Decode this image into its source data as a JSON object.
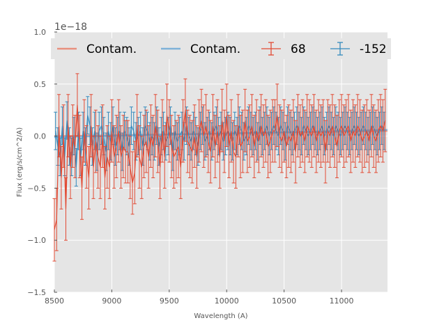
{
  "chart_data": {
    "type": "line",
    "xlabel": "Wavelength (A)",
    "ylabel": "Flux (erg/s/cm^2/A)",
    "y_offset_label": "1e−18",
    "xlim": [
      8500,
      11400
    ],
    "ylim": [
      -1.5,
      1.0
    ],
    "x_ticks": [
      8500,
      9000,
      9500,
      10000,
      10500,
      11000
    ],
    "x_tick_labels": [
      "8500",
      "9000",
      "9500",
      "10000",
      "10500",
      "11000"
    ],
    "y_ticks": [
      -1.5,
      -1.0,
      -0.5,
      0.0,
      0.5,
      1.0
    ],
    "y_tick_labels": [
      "−1.5",
      "−1.0",
      "−0.5",
      "0.0",
      "0.5",
      "1.0"
    ],
    "grid": true,
    "legend_position": "top",
    "colors": {
      "series_68": "#E24A33",
      "series_152": "#348ABD",
      "contam_68": "#E8907E",
      "contam_152": "#7EB1D8",
      "background": "#E5E5E5",
      "grid": "#FFFFFF"
    },
    "legend": [
      {
        "label": "Contam.",
        "kind": "line",
        "color": "#E8907E"
      },
      {
        "label": "Contam.",
        "kind": "line",
        "color": "#7EB1D8"
      },
      {
        "label": "68",
        "kind": "errorbar",
        "color": "#E24A33"
      },
      {
        "label": "-152",
        "kind": "errorbar",
        "color": "#348ABD"
      }
    ],
    "series": [
      {
        "name": "68",
        "kind": "errorbar",
        "color": "#E24A33",
        "x_start": 8500,
        "x_step": 20,
        "y": [
          -0.9,
          -0.8,
          0.1,
          -0.4,
          0.0,
          -0.7,
          0.1,
          -0.3,
          0.0,
          -0.1,
          0.3,
          -0.1,
          -0.5,
          0.05,
          -0.2,
          -0.4,
          0.1,
          -0.3,
          -0.05,
          -0.2,
          -0.3,
          0.0,
          -0.4,
          -0.2,
          -0.3,
          0.05,
          -0.2,
          -0.1,
          0.05,
          -0.2,
          -0.1,
          -0.15,
          -0.15,
          -0.3,
          -0.45,
          -0.35,
          0.1,
          -0.2,
          -0.3,
          -0.1,
          -0.05,
          -0.2,
          0.0,
          -0.1,
          0.1,
          -0.05,
          -0.3,
          0.05,
          -0.2,
          0.2,
          0.05,
          -0.1,
          -0.2,
          -0.15,
          -0.1,
          -0.3,
          0.05,
          0.25,
          -0.05,
          -0.1,
          -0.15,
          0.0,
          -0.2,
          0.05,
          0.15,
          0.0,
          0.1,
          -0.05,
          -0.15,
          0.1,
          -0.1,
          0.05,
          -0.2,
          0.15,
          -0.05,
          0.2,
          -0.1,
          0.05,
          -0.15,
          -0.2,
          0.1,
          -0.1,
          -0.05,
          0.15,
          -0.05,
          0.0,
          0.1,
          -0.1,
          0.05,
          -0.05,
          0.1,
          0.0,
          0.05,
          -0.1,
          -0.05,
          0.05,
          0.05,
          0.2,
          0.0,
          -0.05,
          0.05,
          -0.1,
          0.0,
          -0.05,
          0.05,
          -0.15,
          0.1,
          0.0,
          0.05,
          -0.05,
          0.1,
          0.05,
          0.0,
          0.1,
          -0.05,
          0.05,
          0.0,
          0.05,
          -0.15,
          0.05,
          0.0,
          0.1,
          0.0,
          -0.1,
          0.05,
          0.1,
          0.0,
          0.05,
          0.1,
          -0.05,
          0.05,
          0.0,
          0.1,
          0.05,
          -0.05,
          0.0,
          0.05,
          -0.05,
          0.1,
          0.0,
          -0.05,
          0.05,
          0.1,
          0.05,
          0.15
        ],
        "yerr": 0.3
      },
      {
        "name": "-152",
        "kind": "errorbar",
        "color": "#348ABD",
        "x_start": 8510,
        "x_step": 20,
        "y": [
          0.05,
          -0.1,
          -0.2,
          0.1,
          -0.2,
          0.15,
          -0.1,
          -0.2,
          0.0,
          -0.3,
          0.05,
          -0.2,
          0.05,
          -0.1,
          0.2,
          0.1,
          -0.1,
          0.05,
          -0.15,
          0.05,
          0.1,
          0.0,
          -0.15,
          0.05,
          -0.05,
          0.1,
          -0.1,
          0.0,
          0.05,
          -0.15,
          0.05,
          0.0,
          -0.1,
          0.1,
          0.05,
          -0.05,
          0.0,
          0.05,
          -0.1,
          0.1,
          0.05,
          -0.05,
          0.0,
          -0.05,
          0.1,
          -0.1,
          0.0,
          0.05,
          -0.05,
          0.0,
          0.1,
          -0.15,
          0.05,
          -0.05,
          0.0,
          0.05,
          -0.05,
          0.1,
          0.0,
          -0.05,
          0.05,
          0.0,
          -0.1,
          0.05,
          0.1,
          -0.05,
          0.0,
          0.05,
          -0.05,
          0.05,
          0.1,
          0.0,
          0.05,
          -0.05,
          0.0,
          0.05,
          0.0,
          -0.05,
          0.05,
          0.0,
          0.1,
          0.05,
          -0.05,
          0.0,
          0.1,
          0.05,
          0.0,
          0.05,
          -0.05,
          0.1,
          0.0,
          0.05,
          0.1,
          0.0,
          0.05,
          0.1,
          0.05,
          0.0,
          0.1,
          0.05,
          -0.05,
          0.1,
          0.05,
          0.0,
          0.05,
          0.1,
          0.05,
          0.0,
          0.1,
          0.05,
          0.0,
          0.05,
          0.1,
          0.05,
          0.0,
          0.05,
          0.1,
          0.0,
          0.05,
          0.1,
          0.05,
          0.0,
          0.1,
          0.05,
          0.0,
          0.05,
          0.1,
          0.05,
          0.0,
          0.05,
          0.1,
          0.05,
          0.0,
          0.05,
          0.1,
          0.05,
          0.0,
          0.05,
          0.1,
          0.05,
          0.0,
          0.05,
          0.1,
          0.05
        ],
        "yerr": 0.18
      },
      {
        "name": "Contam.",
        "kind": "line",
        "color": "#E8907E",
        "x": [
          8500,
          11400
        ],
        "y": [
          0.0,
          0.05
        ]
      },
      {
        "name": "Contam.",
        "kind": "line",
        "color": "#7EB1D8",
        "x": [
          8500,
          11400
        ],
        "y": [
          -0.01,
          0.06
        ]
      }
    ]
  }
}
